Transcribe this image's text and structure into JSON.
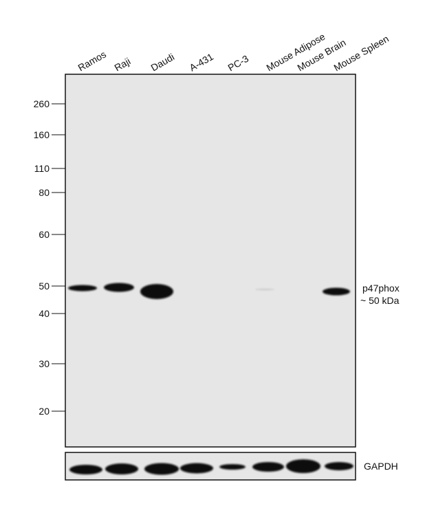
{
  "lanes": [
    "Ramos",
    "Raji",
    "Daudi",
    "A-431",
    "PC-3",
    "Mouse Adipose",
    "Mouse Brain",
    "Mouse Spleen"
  ],
  "markers": [
    "260",
    "160",
    "110",
    "80",
    "60",
    "50",
    "40",
    "30",
    "20"
  ],
  "band_label": {
    "target": "p47phox",
    "size": "~ 50 kDa"
  },
  "loading_control": "GAPDH"
}
